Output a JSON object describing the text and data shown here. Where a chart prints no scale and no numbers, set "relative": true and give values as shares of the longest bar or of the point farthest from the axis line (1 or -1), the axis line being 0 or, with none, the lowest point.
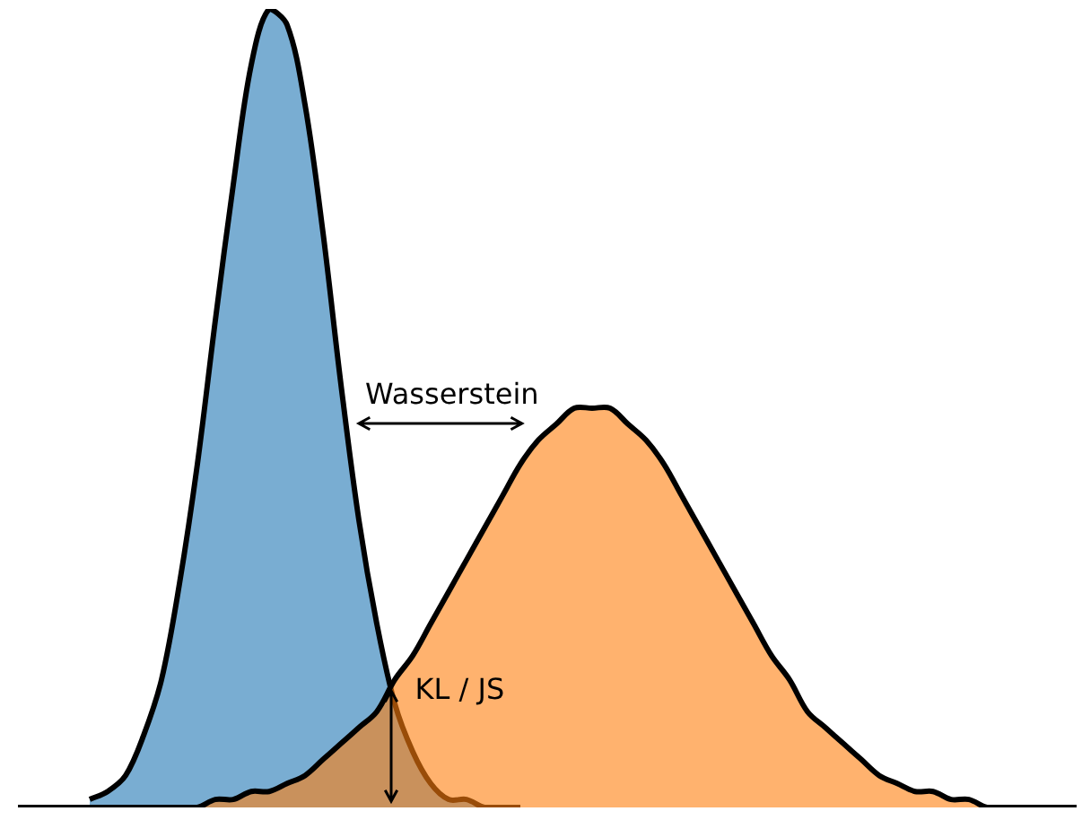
{
  "chart_data": {
    "type": "area",
    "relative": true,
    "legend": false,
    "categories": [
      null,
      null,
      null,
      null,
      null,
      null,
      null,
      null,
      null,
      null,
      null,
      null,
      null,
      null,
      null,
      null,
      null,
      null,
      null,
      null,
      null,
      null,
      null,
      null,
      null,
      null,
      null,
      null,
      null,
      null,
      null,
      null,
      null,
      null,
      null,
      null,
      null,
      null,
      null,
      null,
      null,
      null,
      null,
      null,
      null,
      null,
      null,
      null,
      null,
      null,
      null,
      null,
      null,
      null,
      null,
      null,
      null,
      null,
      null,
      null
    ],
    "series": [
      {
        "color": "#1f77b4",
        "values": [
          null,
          null,
          null,
          null,
          0.01,
          0.02,
          0.04,
          0.09,
          0.16,
          0.28,
          0.43,
          0.61,
          0.78,
          0.93,
          1,
          0.98,
          0.88,
          0.72,
          0.53,
          0.36,
          0.23,
          0.13,
          0.07,
          0.03,
          0.01,
          0.01,
          0,
          0,
          0,
          null,
          null,
          null,
          null,
          null,
          null,
          null,
          null,
          null,
          null,
          null,
          null,
          null,
          null,
          null,
          null,
          null,
          null,
          null,
          null,
          null,
          null,
          null,
          null,
          null,
          null,
          null,
          null,
          null,
          null,
          null
        ]
      },
      {
        "color": "#ff7f0e",
        "values": [
          0,
          0,
          0,
          0,
          0,
          0,
          0,
          0,
          0,
          0,
          0,
          0.01,
          0.01,
          0.02,
          0.02,
          0.03,
          0.04,
          0.06,
          0.08,
          0.1,
          0.12,
          0.16,
          0.19,
          0.23,
          0.27,
          0.31,
          0.35,
          0.39,
          0.43,
          0.46,
          0.48,
          0.5,
          0.5,
          0.5,
          0.48,
          0.46,
          0.43,
          0.39,
          0.35,
          0.31,
          0.27,
          0.23,
          0.19,
          0.16,
          0.12,
          0.1,
          0.08,
          0.06,
          0.04,
          0.03,
          0.02,
          0.02,
          0.01,
          0.01,
          0,
          0,
          0,
          0,
          0,
          0
        ]
      }
    ],
    "annotations": [
      "Wasserstein",
      "KL / JS"
    ]
  }
}
